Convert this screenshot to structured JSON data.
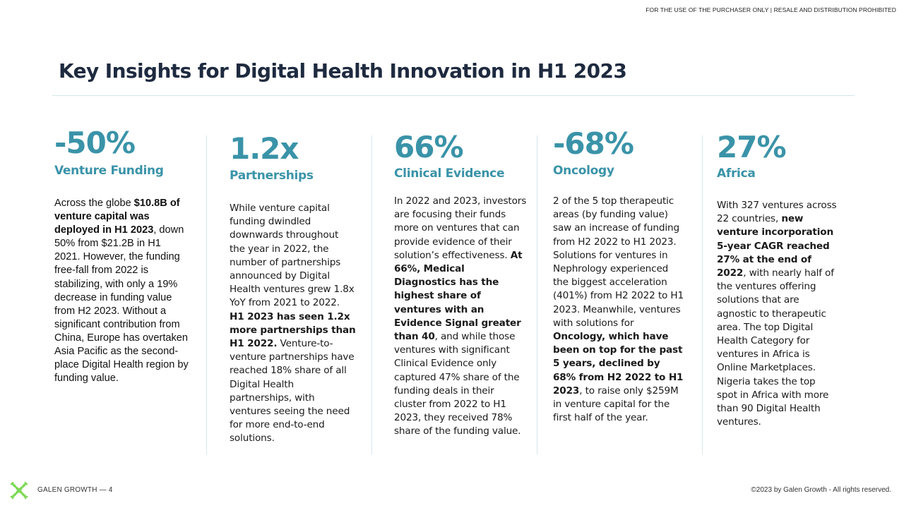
{
  "header": {
    "disclaimer": "FOR THE USE OF THE PURCHASER ONLY | RESALE AND DISTRIBUTION PROHIBITED"
  },
  "title": "Key Insights for Digital Health Innovation in H1 2023",
  "insights": [
    {
      "stat": "-50%",
      "category": "Venture Funding",
      "body": [
        {
          "t": "Across the globe "
        },
        {
          "t": "$10.8B of venture capital was deployed in H1 2023",
          "b": true
        },
        {
          "t": ", down 50% from $21.2B in H1 2021. However, the funding free-fall from 2022 is stabilizing, with only a 19% decrease in funding value from H2 2023. Without a significant contribution from China, Europe has overtaken Asia Pacific as the second-place Digital Health region by funding value."
        }
      ]
    },
    {
      "stat": "1.2x",
      "category": "Partnerships",
      "body": [
        {
          "t": "While venture capital funding dwindled downwards throughout the year in 2022, the number of partnerships announced by Digital Health ventures grew 1.8x YoY from 2021 to 2022. "
        },
        {
          "t": "H1 2023 has seen 1.2x more partnerships than H1 2022.",
          "b": true
        },
        {
          "t": " Venture-to-venture partnerships have reached 18% share of all Digital Health partnerships, with ventures seeing the need for more end-to-end solutions."
        }
      ]
    },
    {
      "stat": "66%",
      "category": "Clinical Evidence",
      "body": [
        {
          "t": "In 2022 and 2023, investors are focusing their funds more on ventures that can provide evidence of their solution’s effectiveness. "
        },
        {
          "t": "At 66%, Medical Diagnostics has the highest share of ventures with an Evidence Signal greater than 40",
          "b": true
        },
        {
          "t": ", and while those ventures with significant Clinical Evidence only captured 47% share of the funding deals in their cluster from 2022 to H1 2023, they received 78% share of the funding value."
        }
      ]
    },
    {
      "stat": "-68%",
      "category": "Oncology",
      "body": [
        {
          "t": "2 of the 5 top therapeutic areas (by funding value) saw an increase of funding from H2 2022 to H1 2023. Solutions for ventures in Nephrology experienced the biggest acceleration (401%) from H2 2022 to H1 2023. Meanwhile, ventures with solutions for "
        },
        {
          "t": "Oncology, which have been on top for the past 5 years, declined by 68% from H2 2022 to H1 2023",
          "b": true
        },
        {
          "t": ", to raise only $259M in venture capital for the first half of the year."
        }
      ]
    },
    {
      "stat": "27%",
      "category": "Africa",
      "body": [
        {
          "t": "With 327 ventures across 22 countries, "
        },
        {
          "t": "new venture incorporation 5-year CAGR reached 27% at the end of 2022",
          "b": true
        },
        {
          "t": ", with nearly half of the ventures offering solutions that are agnostic to therapeutic area. The top Digital Health Category for ventures in Africa is Online Marketplaces. Nigeria takes the top spot in Africa with more than 90 Digital Health ventures."
        }
      ]
    }
  ],
  "footer": {
    "brand": "GALEN GROWTH  —  4",
    "copyright": "©2023 by Galen Growth  - All rights reserved."
  },
  "colors": {
    "accent": "#3a93a8",
    "title": "#1e2a3f",
    "logo": "#7ed957"
  }
}
